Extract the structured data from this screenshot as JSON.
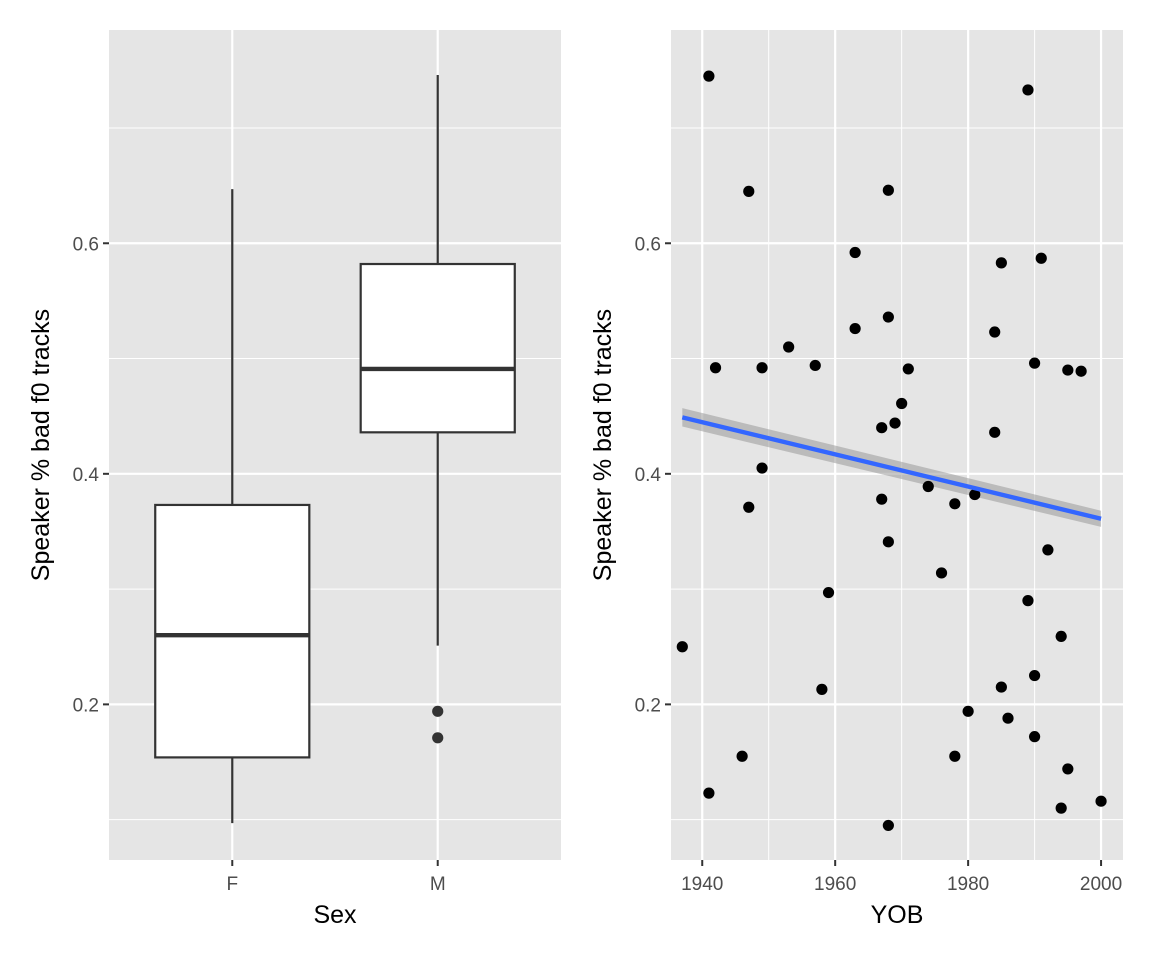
{
  "colors": {
    "panel_bg": "#e5e5e5",
    "grid_major": "#ffffff",
    "box_fill": "#ffffff",
    "box_stroke": "#333333",
    "point": "#000000",
    "smooth_line": "#3366ff",
    "smooth_band": "#999999"
  },
  "chart_data": [
    {
      "type": "box",
      "xlabel": "Sex",
      "ylabel": "Speaker % bad f0 tracks",
      "categories": [
        "F",
        "M"
      ],
      "ylim": [
        0.065,
        0.785
      ],
      "yticks": [
        0.2,
        0.4,
        0.6
      ],
      "ytick_labels": [
        "0.2",
        "0.4",
        "0.6"
      ],
      "grid": true,
      "boxes": [
        {
          "category": "F",
          "whisker_low": 0.097,
          "q1": 0.154,
          "median": 0.26,
          "q3": 0.373,
          "whisker_high": 0.647,
          "outliers": []
        },
        {
          "category": "M",
          "whisker_low": 0.251,
          "q1": 0.436,
          "median": 0.491,
          "q3": 0.582,
          "whisker_high": 0.746,
          "outliers": [
            0.194,
            0.171
          ]
        }
      ]
    },
    {
      "type": "scatter",
      "xlabel": "YOB",
      "ylabel": "Speaker % bad f0 tracks",
      "xlim": [
        1935.3,
        2003.3
      ],
      "ylim": [
        0.065,
        0.785
      ],
      "xticks": [
        1940,
        1960,
        1980,
        2000
      ],
      "xtick_labels": [
        "1940",
        "1960",
        "1980",
        "2000"
      ],
      "yticks": [
        0.2,
        0.4,
        0.6
      ],
      "ytick_labels": [
        "0.2",
        "0.4",
        "0.6"
      ],
      "grid": true,
      "points": [
        [
          1937,
          0.25
        ],
        [
          1941,
          0.745
        ],
        [
          1941,
          0.123
        ],
        [
          1942,
          0.492
        ],
        [
          1946,
          0.155
        ],
        [
          1947,
          0.645
        ],
        [
          1947,
          0.371
        ],
        [
          1949,
          0.492
        ],
        [
          1949,
          0.405
        ],
        [
          1953,
          0.51
        ],
        [
          1957,
          0.494
        ],
        [
          1958,
          0.213
        ],
        [
          1959,
          0.297
        ],
        [
          1963,
          0.592
        ],
        [
          1963,
          0.526
        ],
        [
          1967,
          0.44
        ],
        [
          1967,
          0.378
        ],
        [
          1968,
          0.646
        ],
        [
          1968,
          0.536
        ],
        [
          1968,
          0.341
        ],
        [
          1968,
          0.095
        ],
        [
          1969,
          0.444
        ],
        [
          1970,
          0.461
        ],
        [
          1971,
          0.491
        ],
        [
          1974,
          0.389
        ],
        [
          1976,
          0.314
        ],
        [
          1978,
          0.374
        ],
        [
          1978,
          0.155
        ],
        [
          1980,
          0.194
        ],
        [
          1981,
          0.382
        ],
        [
          1984,
          0.523
        ],
        [
          1984,
          0.436
        ],
        [
          1985,
          0.583
        ],
        [
          1985,
          0.215
        ],
        [
          1986,
          0.188
        ],
        [
          1989,
          0.733
        ],
        [
          1989,
          0.29
        ],
        [
          1990,
          0.496
        ],
        [
          1990,
          0.225
        ],
        [
          1990,
          0.172
        ],
        [
          1991,
          0.587
        ],
        [
          1992,
          0.334
        ],
        [
          1994,
          0.259
        ],
        [
          1994,
          0.11
        ],
        [
          1995,
          0.49
        ],
        [
          1995,
          0.144
        ],
        [
          1997,
          0.489
        ],
        [
          2000,
          0.116
        ]
      ],
      "smooth": {
        "method": "linear",
        "x": [
          1937,
          2000
        ],
        "y": [
          0.449,
          0.361
        ],
        "ci_upper": [
          0.457,
          0.368
        ],
        "ci_lower": [
          0.441,
          0.354
        ]
      }
    }
  ]
}
